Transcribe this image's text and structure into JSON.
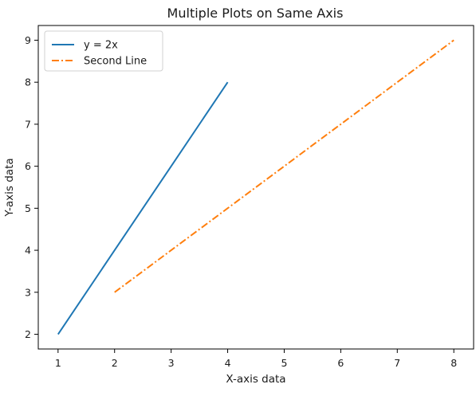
{
  "chart_data": {
    "type": "line",
    "title": "Multiple Plots on Same Axis",
    "xlabel": "X-axis data",
    "ylabel": "Y-axis data",
    "xlim": [
      0.65,
      8.35
    ],
    "ylim": [
      1.65,
      9.35
    ],
    "xticks": [
      1,
      2,
      3,
      4,
      5,
      6,
      7,
      8
    ],
    "yticks": [
      2,
      3,
      4,
      5,
      6,
      7,
      8,
      9
    ],
    "grid": false,
    "legend_position": "top-left",
    "series": [
      {
        "name": "y = 2x",
        "x": [
          1,
          2,
          3,
          4
        ],
        "y": [
          2,
          4,
          6,
          8
        ],
        "color": "#1f77b4",
        "linestyle": "solid"
      },
      {
        "name": "Second Line",
        "x": [
          2,
          4,
          6,
          8
        ],
        "y": [
          3,
          5,
          7,
          9
        ],
        "color": "#ff7f0e",
        "linestyle": "dashdot"
      }
    ]
  }
}
